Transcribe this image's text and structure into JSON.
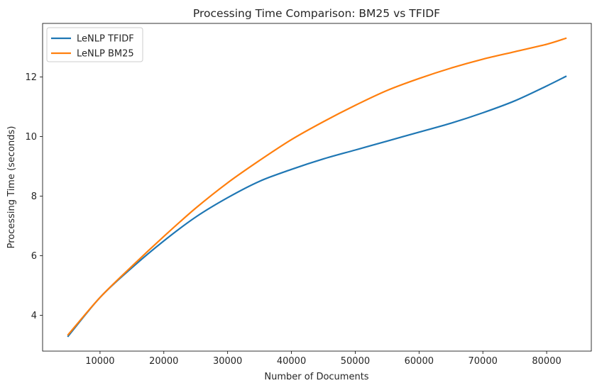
{
  "chart_data": {
    "type": "line",
    "title": "Processing Time Comparison: BM25 vs TFIDF",
    "xlabel": "Number of Documents",
    "ylabel": "Processing Time (seconds)",
    "xlim": [
      1000,
      87000
    ],
    "ylim": [
      2.8,
      13.8
    ],
    "xticks": [
      10000,
      20000,
      30000,
      40000,
      50000,
      60000,
      70000,
      80000
    ],
    "yticks": [
      4,
      6,
      8,
      10,
      12
    ],
    "grid": false,
    "legend_position": "top-left",
    "x": [
      5000,
      10000,
      15000,
      20000,
      25000,
      30000,
      35000,
      40000,
      45000,
      50000,
      55000,
      60000,
      65000,
      70000,
      75000,
      80000,
      83000
    ],
    "series": [
      {
        "name": "LeNLP TFIDF",
        "color": "#1f77b4",
        "values": [
          3.3,
          4.6,
          5.6,
          6.5,
          7.3,
          7.95,
          8.5,
          8.9,
          9.25,
          9.55,
          9.85,
          10.15,
          10.45,
          10.8,
          11.2,
          11.7,
          12.02
        ]
      },
      {
        "name": "LeNLP BM25",
        "color": "#ff7f0e",
        "values": [
          3.35,
          4.6,
          5.65,
          6.65,
          7.6,
          8.45,
          9.2,
          9.9,
          10.5,
          11.05,
          11.55,
          11.95,
          12.3,
          12.6,
          12.85,
          13.1,
          13.3
        ]
      }
    ]
  }
}
